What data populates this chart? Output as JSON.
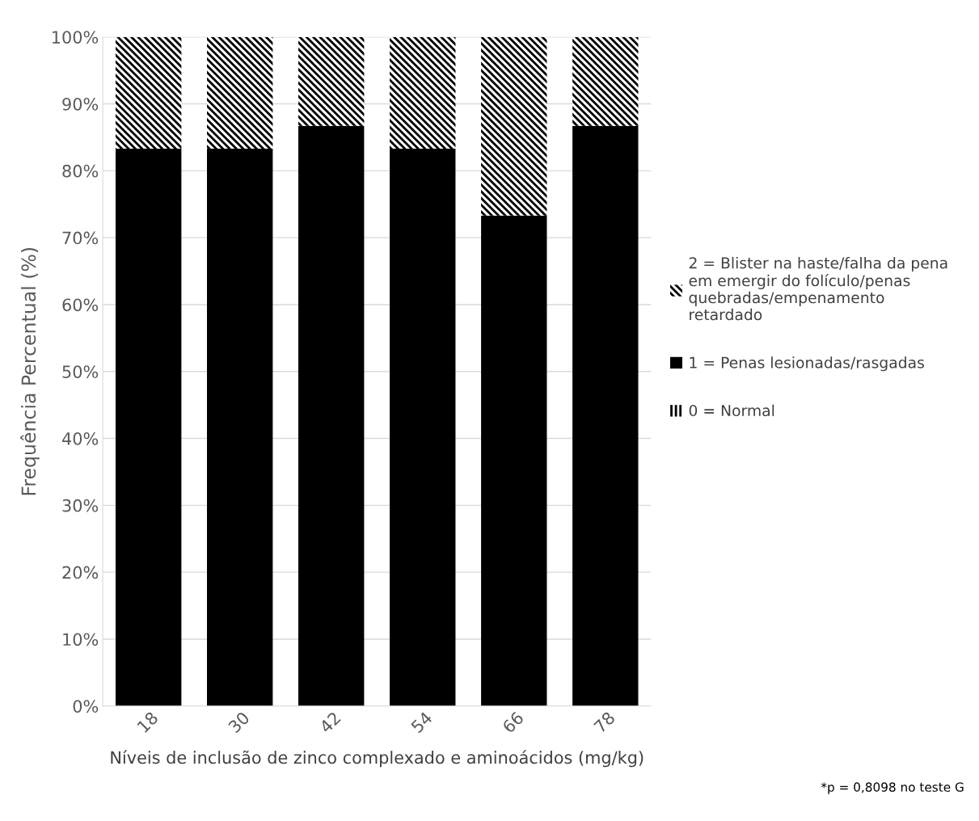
{
  "chart_data": {
    "type": "bar",
    "stacked": true,
    "xlabel": "Níveis de inclusão de zinco complexado e aminoácidos (mg/kg)",
    "ylabel": "Frequência Percentual (%)",
    "categories": [
      "18",
      "30",
      "42",
      "54",
      "66",
      "78"
    ],
    "series": [
      {
        "name": "0 = Normal",
        "color": "#000000",
        "values": [
          0,
          0,
          0,
          0,
          0,
          0
        ]
      },
      {
        "name": "1 = Penas lesionadas/rasgadas",
        "color": "#000000",
        "values": [
          83.3,
          83.3,
          86.7,
          83.3,
          73.3,
          86.7
        ]
      },
      {
        "name": "2 = Blister na haste/falha da pena\nem emergir do folículo/penas\nquebradas/empenamento\nretardado",
        "color": "#000000",
        "values": [
          16.7,
          16.7,
          13.3,
          16.7,
          26.7,
          13.3
        ]
      }
    ],
    "ylim": [
      0,
      100
    ],
    "yticks": [
      {
        "value": 0,
        "label": "0%"
      },
      {
        "value": 10,
        "label": "10%"
      },
      {
        "value": 20,
        "label": "20%"
      },
      {
        "value": 30,
        "label": "30%"
      },
      {
        "value": 40,
        "label": "40%"
      },
      {
        "value": 50,
        "label": "50%"
      },
      {
        "value": 60,
        "label": "60%"
      },
      {
        "value": 70,
        "label": "70%"
      },
      {
        "value": 80,
        "label": "80%"
      },
      {
        "value": 90,
        "label": "90%"
      },
      {
        "value": 100,
        "label": "100%"
      }
    ],
    "grid": "y",
    "legend": "right",
    "annotations": [
      "*p = 0,8098 no teste G"
    ]
  }
}
